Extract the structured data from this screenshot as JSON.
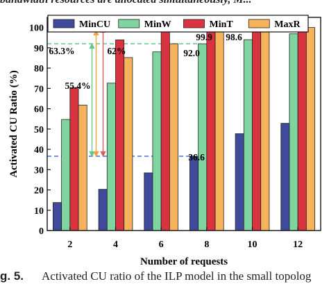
{
  "top_crop_text": "bandwidth resources are allocated simultaneously, M...",
  "caption": {
    "label": "g. 5.",
    "text": "Activated CU ratio of the ILP model in the small topolog"
  },
  "colors": {
    "MinCU": "#3f4a9c",
    "MinW": "#7fd4a0",
    "MinT": "#d9333f",
    "MaxR": "#f7b25c",
    "guide_blue": "#4a6fd0",
    "guide_green": "#5cc98a",
    "guide_red": "#e05b5b",
    "guide_orange": "#f2a03c"
  },
  "chart_data": {
    "type": "bar",
    "xlabel": "Number of requests",
    "ylabel": "Activated CU Ratio (%)",
    "categories": [
      "2",
      "4",
      "6",
      "8",
      "10",
      "12"
    ],
    "ylim": [
      0,
      105
    ],
    "yticks": [
      0,
      10,
      20,
      30,
      40,
      50,
      60,
      70,
      80,
      90,
      100
    ],
    "legend_position": "top",
    "grid": false,
    "series": [
      {
        "name": "MinCU",
        "values": [
          13.8,
          20.3,
          28.4,
          36.6,
          47.7,
          52.8
        ]
      },
      {
        "name": "MinW",
        "values": [
          54.7,
          72.6,
          88.0,
          92.0,
          94.0,
          96.9
        ]
      },
      {
        "name": "MinT",
        "values": [
          70.4,
          93.9,
          98.8,
          99.9,
          100,
          100
        ]
      },
      {
        "name": "MaxR",
        "values": [
          61.8,
          85.2,
          92.0,
          98.6,
          100,
          100
        ]
      }
    ],
    "annotations": [
      {
        "text": "55.4%",
        "kind": "difference"
      },
      {
        "text": "63.3%",
        "kind": "difference"
      },
      {
        "text": "62%",
        "kind": "difference"
      },
      {
        "text": "99.9",
        "kind": "value"
      },
      {
        "text": "98.6",
        "kind": "value"
      },
      {
        "text": "92.0",
        "kind": "value"
      },
      {
        "text": "36.6",
        "kind": "value"
      }
    ]
  }
}
